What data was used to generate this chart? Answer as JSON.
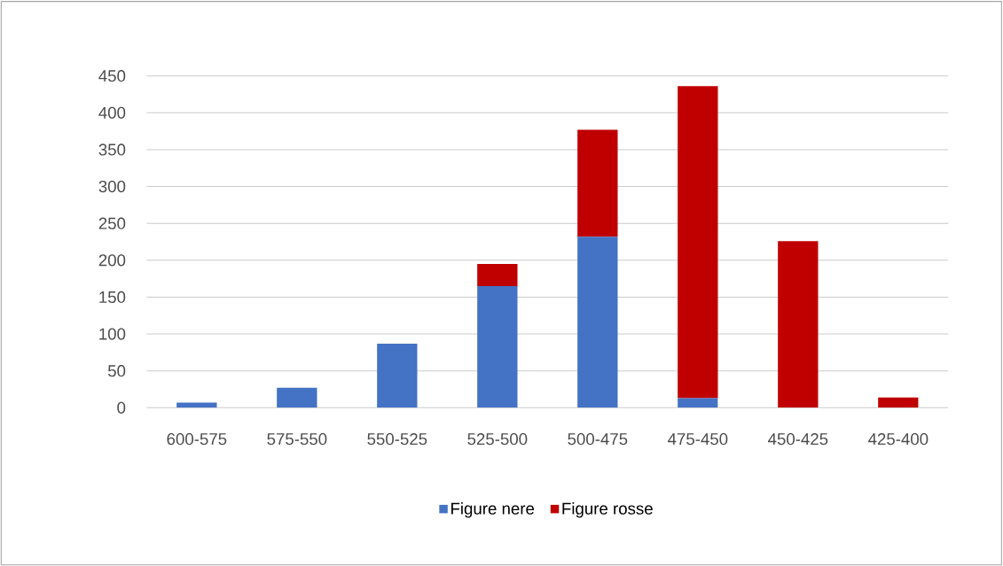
{
  "chart_data": {
    "type": "bar",
    "stacked": true,
    "categories": [
      "600-575",
      "575-550",
      "550-525",
      "525-500",
      "500-475",
      "475-450",
      "450-425",
      "425-400"
    ],
    "series": [
      {
        "name": "Figure nere",
        "color": "#4472c4",
        "values": [
          7,
          27,
          87,
          165,
          232,
          13,
          0,
          0
        ]
      },
      {
        "name": "Figure rosse",
        "color": "#c00000",
        "values": [
          0,
          0,
          0,
          30,
          145,
          423,
          226,
          14
        ]
      }
    ],
    "ylim": [
      0,
      450
    ],
    "yticks": [
      0,
      50,
      100,
      150,
      200,
      250,
      300,
      350,
      400,
      450
    ],
    "grid": "y",
    "legend": "bottom"
  }
}
